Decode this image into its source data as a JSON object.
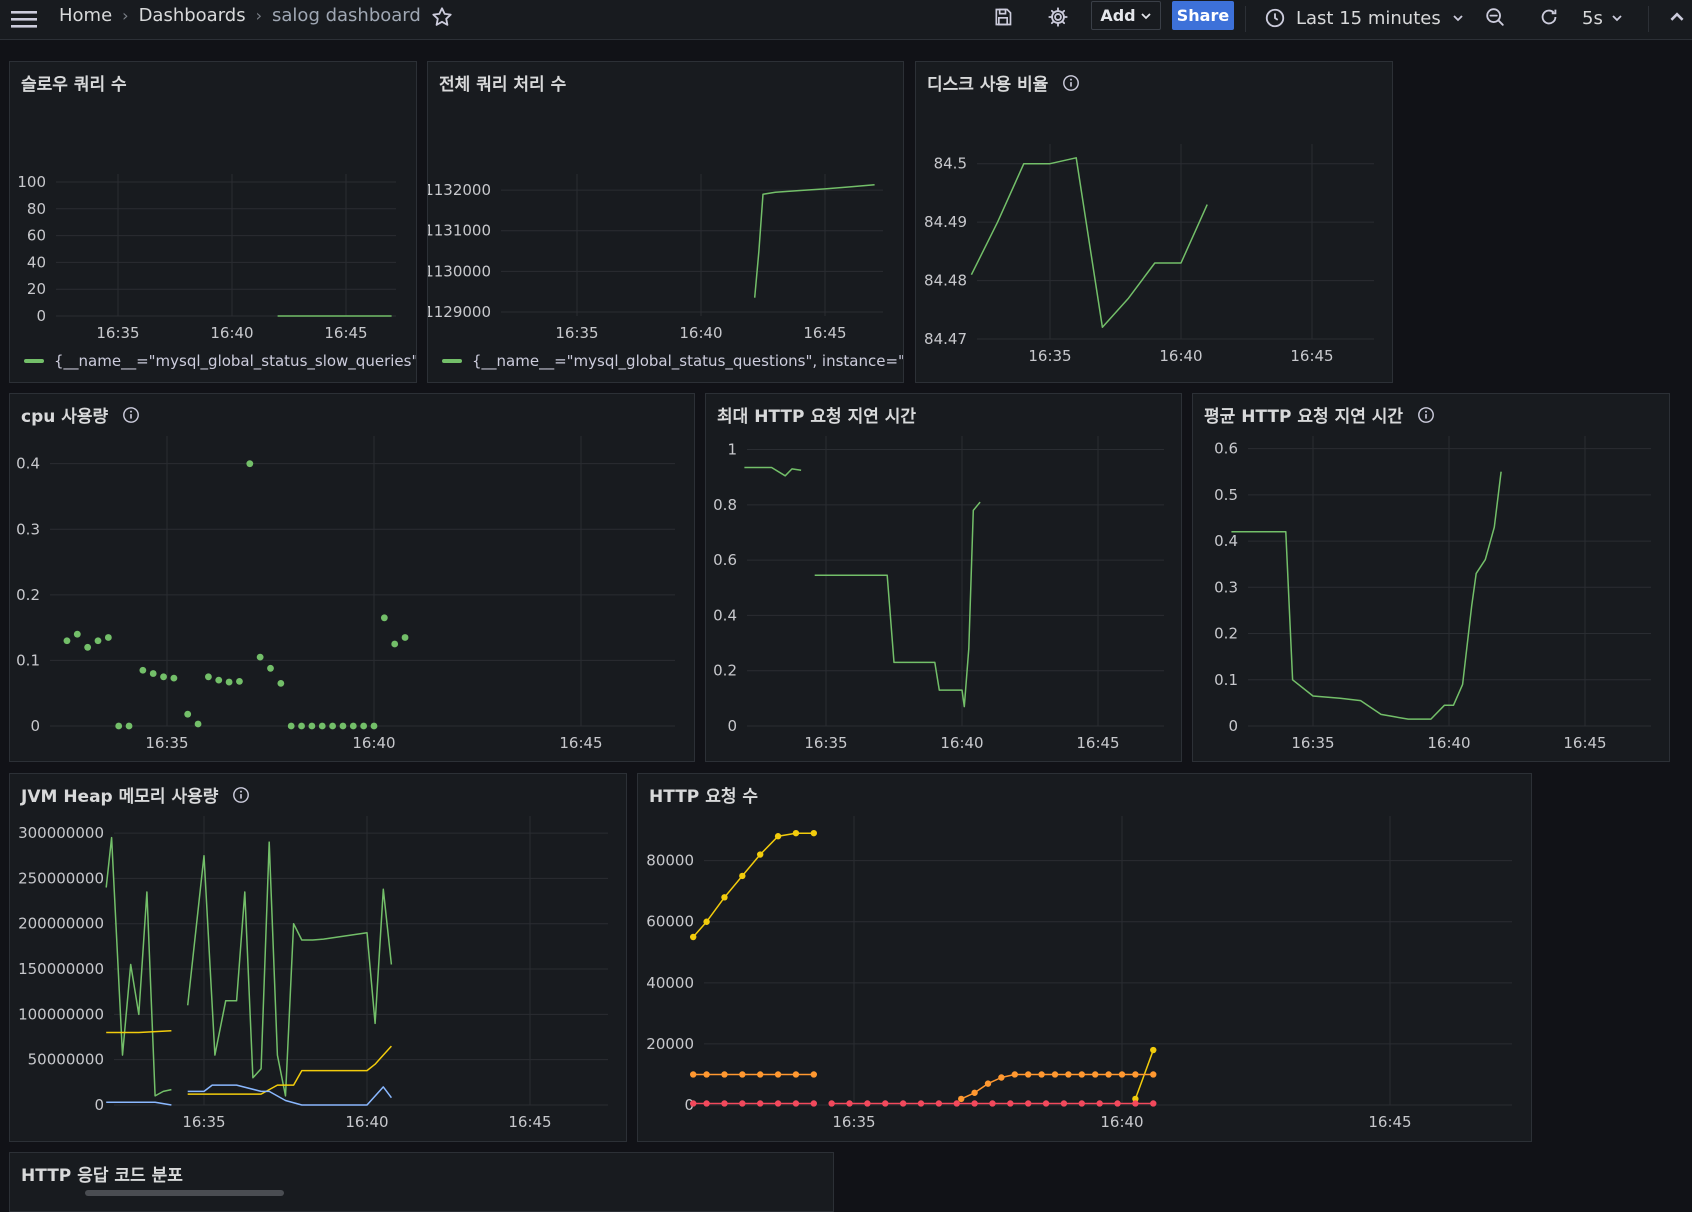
{
  "topbar": {
    "breadcrumb": [
      "Home",
      "Dashboards",
      "salog dashboard"
    ],
    "add_label": "Add",
    "share_label": "Share",
    "time_range": "Last 15 minutes",
    "refresh_interval": "5s"
  },
  "colors": {
    "green": "#73bf69",
    "yellow": "#f2cc0c",
    "blue": "#8ab8ff",
    "orange": "#ff9830",
    "red": "#f2495c"
  },
  "panels": {
    "slow_queries": {
      "title": "슬로우 쿼리 수",
      "legend": "{__name__=\"mysql_global_status_slow_queries\",",
      "chart_data": {
        "type": "line",
        "x_ticks": [
          "16:35",
          "16:40",
          "16:45"
        ],
        "y_ticks": [
          0,
          20,
          40,
          60,
          80,
          100
        ],
        "ylim": [
          0,
          100
        ],
        "series": [
          {
            "color": "#73bf69",
            "x": [
              "16:42",
              "16:47"
            ],
            "values": [
              0,
              0
            ]
          }
        ]
      }
    },
    "total_queries": {
      "title": "전체 쿼리 처리 수",
      "legend": "{__name__=\"mysql_global_status_questions\", instance=\"lo",
      "chart_data": {
        "type": "line",
        "x_ticks": [
          "16:35",
          "16:40",
          "16:45"
        ],
        "y_ticks": [
          1129000,
          1130000,
          1131000,
          1132000
        ],
        "ylim": [
          1128900,
          1132200
        ],
        "series": [
          {
            "color": "#73bf69",
            "x": [
              "16:42:10",
              "16:42:20",
              "16:42:30",
              "16:43",
              "16:44",
              "16:45",
              "16:46",
              "16:47"
            ],
            "values": [
              1129350,
              1130500,
              1131900,
              1131950,
              1131990,
              1132030,
              1132080,
              1132130
            ]
          }
        ]
      }
    },
    "disk_usage": {
      "title": "디스크 사용 비율",
      "chart_data": {
        "type": "line",
        "x_ticks": [
          "16:35",
          "16:40",
          "16:45"
        ],
        "y_ticks": [
          84.47,
          84.48,
          84.49,
          84.5
        ],
        "ylim": [
          84.47,
          84.502
        ],
        "series": [
          {
            "color": "#73bf69",
            "x": [
              "16:32",
              "16:33",
              "16:34",
              "16:35",
              "16:36",
              "16:37",
              "16:38",
              "16:39",
              "16:40",
              "16:41"
            ],
            "values": [
              84.481,
              84.49,
              84.5,
              84.5,
              84.501,
              84.472,
              84.477,
              84.483,
              84.483,
              84.493
            ]
          }
        ]
      }
    },
    "cpu": {
      "title": "cpu 사용량",
      "chart_data": {
        "type": "scatter",
        "x_ticks": [
          "16:35",
          "16:40",
          "16:45"
        ],
        "y_ticks": [
          0,
          0.1,
          0.2,
          0.3,
          0.4
        ],
        "ylim": [
          0,
          0.43
        ],
        "points": [
          [
            0.13,
            "16:32:35"
          ],
          [
            0.14,
            "16:32:50"
          ],
          [
            0.12,
            "16:33:05"
          ],
          [
            0.13,
            "16:33:20"
          ],
          [
            0.135,
            "16:33:35"
          ],
          [
            0,
            "16:33:50"
          ],
          [
            0,
            "16:34:05"
          ],
          [
            0.085,
            "16:34:25"
          ],
          [
            0.08,
            "16:34:40"
          ],
          [
            0.075,
            "16:34:55"
          ],
          [
            0.073,
            "16:35:10"
          ],
          [
            0.018,
            "16:35:30"
          ],
          [
            0.003,
            "16:35:45"
          ],
          [
            0.075,
            "16:36:00"
          ],
          [
            0.07,
            "16:36:15"
          ],
          [
            0.067,
            "16:36:30"
          ],
          [
            0.068,
            "16:36:45"
          ],
          [
            0.4,
            "16:37:00"
          ],
          [
            0.105,
            "16:37:15"
          ],
          [
            0.088,
            "16:37:30"
          ],
          [
            0.065,
            "16:37:45"
          ],
          [
            0,
            "16:38:00"
          ],
          [
            0,
            "16:38:15"
          ],
          [
            0,
            "16:38:30"
          ],
          [
            0,
            "16:38:45"
          ],
          [
            0,
            "16:39:00"
          ],
          [
            0,
            "16:39:15"
          ],
          [
            0,
            "16:39:30"
          ],
          [
            0,
            "16:39:45"
          ],
          [
            0,
            "16:40:00"
          ],
          [
            0.165,
            "16:40:15"
          ],
          [
            0.125,
            "16:40:30"
          ],
          [
            0.135,
            "16:40:45"
          ]
        ]
      }
    },
    "max_latency": {
      "title": "최대 HTTP 요청 지연 시간",
      "chart_data": {
        "type": "line",
        "x_ticks": [
          "16:35",
          "16:40",
          "16:45"
        ],
        "y_ticks": [
          0,
          0.2,
          0.4,
          0.6,
          0.8,
          1
        ],
        "ylim": [
          0,
          1.02
        ],
        "series": [
          {
            "color": "#73bf69",
            "segments": [
              {
                "x": [
                  "16:32",
                  "16:33",
                  "16:33:30",
                  "16:33:45",
                  "16:34:05"
                ],
                "values": [
                  0.935,
                  0.935,
                  0.905,
                  0.93,
                  0.925
                ]
              },
              {
                "x": [
                  "16:34:35",
                  "16:37:15",
                  "16:37:30",
                  "16:39",
                  "16:39:10",
                  "16:40",
                  "16:40:05",
                  "16:40:15",
                  "16:40:25",
                  "16:40:35",
                  "16:40:40"
                ],
                "values": [
                  0.545,
                  0.545,
                  0.23,
                  0.23,
                  0.13,
                  0.13,
                  0.07,
                  0.28,
                  0.78,
                  0.8,
                  0.81
                ]
              }
            ]
          }
        ]
      }
    },
    "avg_latency": {
      "title": "평균 HTTP 요청 지연 시간",
      "chart_data": {
        "type": "line",
        "x_ticks": [
          "16:35",
          "16:40",
          "16:45"
        ],
        "y_ticks": [
          0,
          0.1,
          0.2,
          0.3,
          0.4,
          0.5,
          0.6
        ],
        "ylim": [
          0,
          0.61
        ],
        "series": [
          {
            "color": "#73bf69",
            "x": [
              "16:32",
              "16:33",
              "16:33:30",
              "16:34",
              "16:34:15",
              "16:35",
              "16:36",
              "16:36:45",
              "16:37:30",
              "16:38",
              "16:38:30",
              "16:39:20",
              "16:39:50",
              "16:40:10",
              "16:40:30",
              "16:40:50",
              "16:41",
              "16:41:20",
              "16:41:40",
              "16:41:55"
            ],
            "values": [
              0.42,
              0.42,
              0.42,
              0.42,
              0.1,
              0.065,
              0.06,
              0.055,
              0.025,
              0.02,
              0.015,
              0.015,
              0.045,
              0.045,
              0.09,
              0.26,
              0.33,
              0.36,
              0.43,
              0.55
            ]
          }
        ]
      }
    },
    "jvm_heap": {
      "title": "JVM Heap 메모리 사용량",
      "chart_data": {
        "type": "line",
        "x_ticks": [
          "16:35",
          "16:40",
          "16:45"
        ],
        "y_ticks": [
          0,
          50000000,
          100000000,
          150000000,
          200000000,
          250000000,
          300000000
        ],
        "y_tick_labels": [
          "0",
          "50000000",
          "100000000",
          "150000000",
          "200000000",
          "250000000",
          "300000000"
        ],
        "ylim": [
          0,
          310000000
        ],
        "series": [
          {
            "color": "#73bf69",
            "segments": [
              {
                "x": [
                  "16:32",
                  "16:32:10",
                  "16:32:30",
                  "16:32:45",
                  "16:33",
                  "16:33:15",
                  "16:33:30",
                  "16:33:45",
                  "16:34"
                ],
                "values": [
                  240000000,
                  295000000,
                  55000000,
                  155000000,
                  100000000,
                  235000000,
                  10000000,
                  15000000,
                  17000000
                ]
              },
              {
                "x": [
                  "16:34:30",
                  "16:35",
                  "16:35:20",
                  "16:35:40",
                  "16:36",
                  "16:36:15",
                  "16:36:30",
                  "16:36:45",
                  "16:37",
                  "16:37:15",
                  "16:37:30",
                  "16:37:45",
                  "16:38",
                  "16:38:20",
                  "16:38:40",
                  "16:40",
                  "16:40:15",
                  "16:40:30",
                  "16:40:45"
                ],
                "values": [
                  110000000,
                  275000000,
                  55000000,
                  115000000,
                  115000000,
                  235000000,
                  30000000,
                  40000000,
                  290000000,
                  55000000,
                  10000000,
                  200000000,
                  182000000,
                  182000000,
                  183000000,
                  190000000,
                  90000000,
                  238000000,
                  155000000
                ]
              }
            ]
          },
          {
            "color": "#f2cc0c",
            "segments": [
              {
                "x": [
                  "16:32",
                  "16:33",
                  "16:34"
                ],
                "values": [
                  80000000,
                  80000000,
                  82000000
                ]
              },
              {
                "x": [
                  "16:34:30",
                  "16:35",
                  "16:36",
                  "16:36:45",
                  "16:37:15",
                  "16:37:30",
                  "16:37:45",
                  "16:38",
                  "16:39",
                  "16:40",
                  "16:40:15",
                  "16:40:45"
                ],
                "values": [
                  12000000,
                  12000000,
                  12000000,
                  12000000,
                  22000000,
                  22000000,
                  22000000,
                  38000000,
                  38000000,
                  38000000,
                  45000000,
                  65000000
                ]
              }
            ]
          },
          {
            "color": "#8ab8ff",
            "segments": [
              {
                "x": [
                  "16:32",
                  "16:33",
                  "16:33:30",
                  "16:34"
                ],
                "values": [
                  3000000,
                  3000000,
                  3000000,
                  0
                ]
              },
              {
                "x": [
                  "16:34:30",
                  "16:35",
                  "16:35:15",
                  "16:36",
                  "16:36:45",
                  "16:37",
                  "16:37:30",
                  "16:38",
                  "16:39",
                  "16:40",
                  "16:40:30",
                  "16:40:45"
                ],
                "values": [
                  15000000,
                  15000000,
                  22000000,
                  22000000,
                  15000000,
                  15000000,
                  5000000,
                  0,
                  0,
                  0,
                  20000000,
                  8000000
                ]
              }
            ]
          }
        ]
      }
    },
    "http_requests": {
      "title": "HTTP 요청 수",
      "chart_data": {
        "type": "line",
        "x_ticks": [
          "16:35",
          "16:40",
          "16:45"
        ],
        "y_ticks": [
          0,
          20000,
          40000,
          60000,
          80000
        ],
        "ylim": [
          0,
          92000
        ],
        "series": [
          {
            "color": "#f2cc0c",
            "segments": [
              {
                "x": [
                  "16:32",
                  "16:32:15",
                  "16:32:35",
                  "16:32:55",
                  "16:33:15",
                  "16:33:35",
                  "16:33:55",
                  "16:34:15"
                ],
                "values": [
                  55000,
                  60000,
                  68000,
                  75000,
                  82000,
                  88000,
                  89000,
                  89000
                ]
              },
              {
                "x": [
                  "16:40:15",
                  "16:40:35"
                ],
                "values": [
                  2000,
                  18000
                ]
              }
            ]
          },
          {
            "color": "#ff9830",
            "segments": [
              {
                "x": [
                  "16:32",
                  "16:32:15",
                  "16:32:35",
                  "16:32:55",
                  "16:33:15",
                  "16:33:35",
                  "16:33:55",
                  "16:34:15"
                ],
                "values": [
                  10000,
                  10000,
                  10000,
                  10000,
                  10000,
                  10000,
                  10000,
                  10000
                ]
              },
              {
                "x": [
                  "16:37",
                  "16:37:15",
                  "16:37:30",
                  "16:37:45",
                  "16:38",
                  "16:38:15",
                  "16:38:30",
                  "16:38:45",
                  "16:39",
                  "16:39:15",
                  "16:39:30",
                  "16:39:45",
                  "16:40",
                  "16:40:15",
                  "16:40:35"
                ],
                "values": [
                  2000,
                  4000,
                  7000,
                  9000,
                  10000,
                  10000,
                  10000,
                  10000,
                  10000,
                  10000,
                  10000,
                  10000,
                  10000,
                  10000,
                  10000
                ]
              }
            ]
          },
          {
            "color": "#f2495c",
            "segments": [
              {
                "x": [
                  "16:32",
                  "16:32:15",
                  "16:32:35",
                  "16:32:55",
                  "16:33:15",
                  "16:33:35",
                  "16:33:55",
                  "16:34:15"
                ],
                "values": [
                  500,
                  500,
                  500,
                  500,
                  500,
                  500,
                  500,
                  500
                ]
              },
              {
                "x": [
                  "16:34:35",
                  "16:34:55",
                  "16:35:15",
                  "16:35:35",
                  "16:35:55",
                  "16:36:15",
                  "16:36:35",
                  "16:36:55",
                  "16:37:15",
                  "16:37:35",
                  "16:37:55",
                  "16:38:15",
                  "16:38:35",
                  "16:38:55",
                  "16:39:15",
                  "16:39:35",
                  "16:39:55",
                  "16:40:15",
                  "16:40:35"
                ],
                "values": [
                  500,
                  500,
                  500,
                  500,
                  500,
                  500,
                  500,
                  500,
                  500,
                  500,
                  500,
                  500,
                  500,
                  500,
                  500,
                  500,
                  500,
                  500,
                  500
                ]
              }
            ]
          }
        ]
      }
    },
    "http_status": {
      "title": "HTTP 응답 코드 분포"
    }
  }
}
